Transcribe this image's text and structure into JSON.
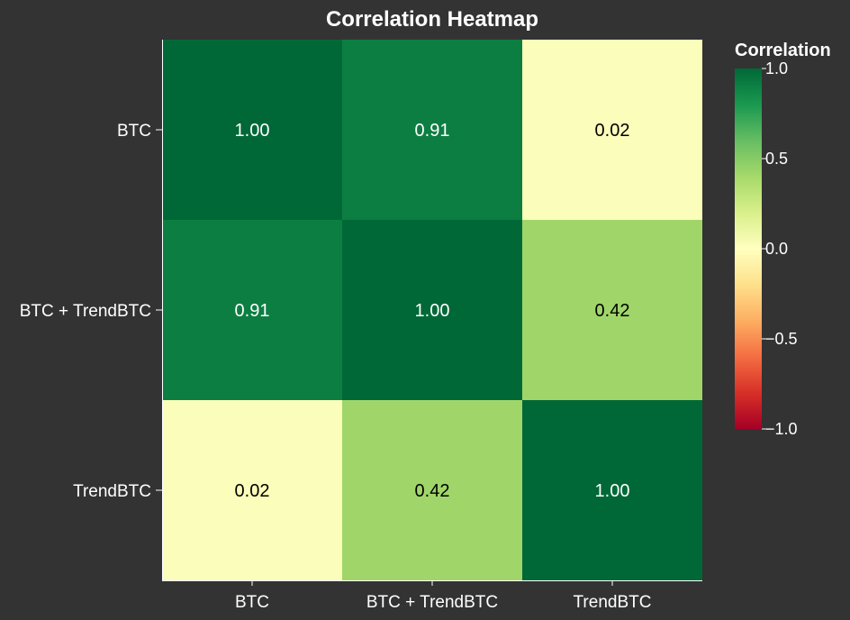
{
  "chart_data": {
    "type": "heatmap",
    "title": "Correlation Heatmap",
    "x_categories": [
      "BTC",
      "BTC + TrendBTC",
      "TrendBTC"
    ],
    "y_categories": [
      "BTC",
      "BTC + TrendBTC",
      "TrendBTC"
    ],
    "values": [
      [
        1.0,
        0.91,
        0.02
      ],
      [
        0.91,
        1.0,
        0.42
      ],
      [
        0.02,
        0.42,
        1.0
      ]
    ],
    "value_labels": [
      [
        "1.00",
        "0.91",
        "0.02"
      ],
      [
        "0.91",
        "1.00",
        "0.42"
      ],
      [
        "0.02",
        "0.42",
        "1.00"
      ]
    ],
    "colorscale": "RdYlGn",
    "zmin": -1.0,
    "zmax": 1.0,
    "colorbar": {
      "title": "Correlation",
      "tick_values": [
        1.0,
        0.5,
        0.0,
        -0.5,
        -1.0
      ],
      "tick_labels": [
        "1.0",
        "0.5",
        "0.0",
        "−0.5",
        "−1.0"
      ],
      "placement": "right"
    }
  },
  "colors": {
    "background": "#333333",
    "text": "#ffffff",
    "axis": "#ffffff"
  }
}
